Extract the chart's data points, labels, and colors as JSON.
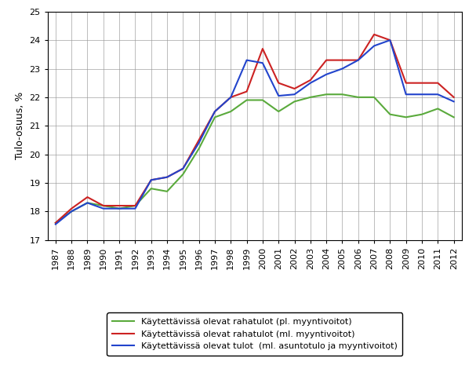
{
  "years": [
    1987,
    1988,
    1989,
    1990,
    1991,
    1992,
    1993,
    1994,
    1995,
    1996,
    1997,
    1998,
    1999,
    2000,
    2001,
    2002,
    2003,
    2004,
    2005,
    2006,
    2007,
    2008,
    2009,
    2010,
    2011,
    2012
  ],
  "green": [
    17.6,
    18.0,
    18.3,
    18.2,
    18.1,
    18.2,
    18.8,
    18.7,
    19.3,
    20.2,
    21.3,
    21.5,
    21.9,
    21.9,
    21.5,
    21.85,
    22.0,
    22.1,
    22.1,
    22.0,
    22.0,
    21.4,
    21.3,
    21.4,
    21.6,
    21.3
  ],
  "red": [
    17.6,
    18.1,
    18.5,
    18.2,
    18.2,
    18.2,
    19.1,
    19.2,
    19.5,
    20.5,
    21.5,
    22.0,
    22.2,
    23.7,
    22.5,
    22.3,
    22.6,
    23.3,
    23.3,
    23.3,
    24.2,
    24.0,
    22.5,
    22.5,
    22.5,
    22.0
  ],
  "blue": [
    17.55,
    18.0,
    18.3,
    18.1,
    18.1,
    18.1,
    19.1,
    19.2,
    19.5,
    20.4,
    21.5,
    22.0,
    23.3,
    23.2,
    22.05,
    22.1,
    22.5,
    22.8,
    23.0,
    23.3,
    23.8,
    24.0,
    22.1,
    22.1,
    22.1,
    21.85
  ],
  "green_color": "#5AAA3C",
  "red_color": "#CC2222",
  "blue_color": "#2244CC",
  "ylabel": "Tulo-osuus, %",
  "ylim": [
    17,
    25
  ],
  "yticks": [
    17,
    18,
    19,
    20,
    21,
    22,
    23,
    24,
    25
  ],
  "legend_green": "Käytettävissä olevat rahatulot (pl. myyntivoitot)",
  "legend_red": "Käytettävissä olevat rahatulot (ml. myyntivoitot)",
  "legend_blue": "Käytettävissä olevat tulot  (ml. asuntotulo ja myyntivoitot)",
  "linewidth": 1.5,
  "grid_color": "#999999",
  "tick_fontsize": 8,
  "ylabel_fontsize": 9
}
